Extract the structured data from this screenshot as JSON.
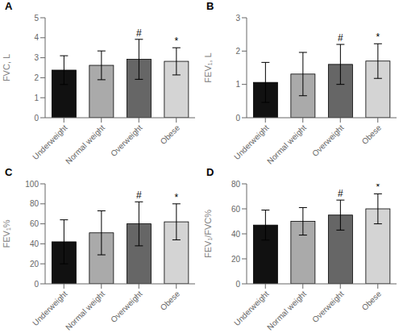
{
  "chart_data": [
    {
      "type": "bar",
      "title": "A",
      "ylabel": "FVC, L",
      "categories": [
        "Underweight",
        "Normal weight",
        "Overweight",
        "Obese"
      ],
      "values": [
        2.38,
        2.62,
        2.92,
        2.82
      ],
      "errors": [
        0.72,
        0.72,
        1.0,
        0.68
      ],
      "annotations": [
        null,
        null,
        "#",
        "*"
      ],
      "colors": [
        "#111111",
        "#aaaaaa",
        "#666666",
        "#d4d4d4"
      ],
      "ylim": [
        0,
        5
      ],
      "yticks": [
        0,
        1,
        2,
        3,
        4,
        5
      ],
      "grid": false
    },
    {
      "type": "bar",
      "title": "B",
      "ylabel": "FEV₁, L",
      "categories": [
        "Underweight",
        "Normal weight",
        "Overweight",
        "Obese"
      ],
      "values": [
        1.06,
        1.31,
        1.6,
        1.7
      ],
      "errors": [
        0.6,
        0.65,
        0.6,
        0.52
      ],
      "annotations": [
        null,
        null,
        "#",
        "*"
      ],
      "colors": [
        "#111111",
        "#aaaaaa",
        "#666666",
        "#d4d4d4"
      ],
      "ylim": [
        0,
        3
      ],
      "yticks": [
        0,
        1,
        2,
        3
      ],
      "grid": false
    },
    {
      "type": "bar",
      "title": "C",
      "ylabel": "FEV₁%",
      "categories": [
        "Underweight",
        "Normal weight",
        "Overweight",
        "Obese"
      ],
      "values": [
        42,
        51,
        60,
        62
      ],
      "errors": [
        22,
        22,
        22,
        18
      ],
      "annotations": [
        null,
        null,
        "#",
        "*"
      ],
      "colors": [
        "#111111",
        "#aaaaaa",
        "#666666",
        "#d4d4d4"
      ],
      "ylim": [
        0,
        100
      ],
      "yticks": [
        0,
        20,
        40,
        60,
        80,
        100
      ],
      "grid": false
    },
    {
      "type": "bar",
      "title": "D",
      "ylabel": "FEV₁/FVC%",
      "categories": [
        "Underweight",
        "Normal weight",
        "Overweight",
        "Obese"
      ],
      "values": [
        47,
        50,
        55,
        60
      ],
      "errors": [
        12,
        11,
        12,
        12
      ],
      "annotations": [
        null,
        null,
        "#",
        "*"
      ],
      "colors": [
        "#111111",
        "#aaaaaa",
        "#666666",
        "#d4d4d4"
      ],
      "ylim": [
        0,
        80
      ],
      "yticks": [
        0,
        20,
        40,
        60,
        80
      ],
      "grid": false
    }
  ]
}
